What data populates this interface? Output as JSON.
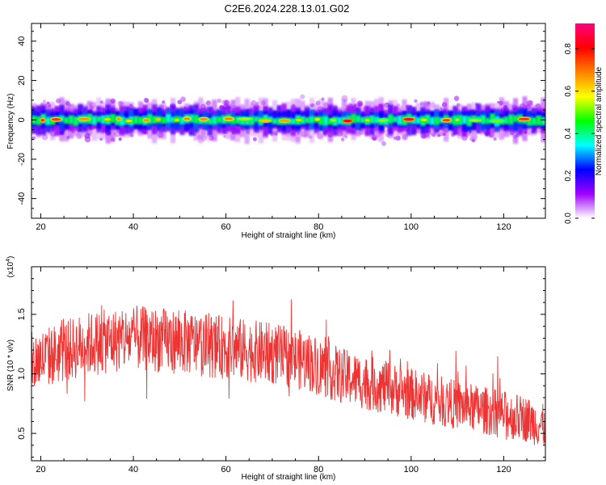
{
  "title": "C2E6.2024.228.13.01.G02",
  "chart_data": [
    {
      "type": "heatmap",
      "xlabel": "Height of straight line (km)",
      "ylabel": "Frequency (Hz)",
      "xlim": [
        18,
        129
      ],
      "ylim": [
        -50,
        49
      ],
      "x_ticks": [
        20,
        40,
        60,
        80,
        100,
        120
      ],
      "y_ticks": [
        40,
        20,
        0,
        -20,
        -40
      ],
      "grid": false,
      "colorbar": {
        "label": "Normalized spectral amplitude",
        "range": [
          0.0,
          0.92
        ],
        "ticks": [
          "0.0",
          "0.2",
          "0.4",
          "0.6",
          "0.8"
        ],
        "tick_values": [
          0.0,
          0.2,
          0.4,
          0.6,
          0.8
        ],
        "colors": [
          "#ffffff",
          "#a000ff",
          "#0000ff",
          "#00ffff",
          "#00ff00",
          "#ffff00",
          "#ff8000",
          "#ff0000",
          "#ff0080"
        ]
      },
      "band": {
        "center_freq": 0,
        "half_width_core": 2,
        "half_width_outer": 6,
        "peak_amplitude": 0.9
      }
    },
    {
      "type": "line",
      "xlabel": "Height of straight line (km)",
      "ylabel": "SNR (10 * v/v)",
      "y_multiplier": "(x10",
      "y_multiplier_exp": "4",
      "y_multiplier_close": ")",
      "xlim": [
        18,
        129
      ],
      "ylim": [
        0.27,
        1.9
      ],
      "x_ticks": [
        20,
        40,
        60,
        80,
        100,
        120
      ],
      "y_ticks": [
        "1.5",
        "1.0",
        "0.5"
      ],
      "y_tick_values": [
        1.5,
        1.0,
        0.5
      ],
      "color": "#ee3333",
      "grid": false,
      "trend": {
        "x": [
          18,
          30,
          40,
          50,
          60,
          70,
          78,
          85,
          95,
          105,
          115,
          125,
          129
        ],
        "y": [
          1.1,
          1.25,
          1.3,
          1.27,
          1.22,
          1.17,
          1.1,
          0.98,
          0.88,
          0.78,
          0.7,
          0.62,
          0.55
        ]
      }
    }
  ]
}
